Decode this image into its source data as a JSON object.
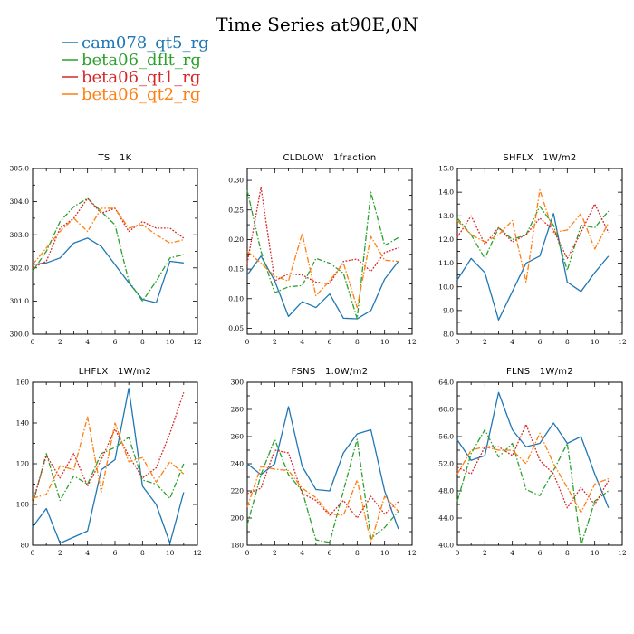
{
  "figure": {
    "title": "Time Series at90E,0N",
    "legend": [
      {
        "label": "cam078_qt5_rg",
        "color": "#1f77b4",
        "dash": "solid"
      },
      {
        "label": "beta06_dflt_rg",
        "color": "#2ca02c",
        "dash": "dashdot"
      },
      {
        "label": "beta06_qt1_rg",
        "color": "#d62728",
        "dash": "dot"
      },
      {
        "label": "beta06_qt2_rg",
        "color": "#ff7f0e",
        "dash": "dashdot"
      }
    ]
  },
  "chart_data": [
    {
      "type": "line",
      "title": "TS   1K",
      "x": [
        0,
        1,
        2,
        3,
        4,
        5,
        6,
        7,
        8,
        9,
        10,
        11
      ],
      "xlim": [
        0,
        12
      ],
      "xticks": [
        0,
        2,
        4,
        6,
        8,
        10,
        12
      ],
      "ylim": [
        300.0,
        305.0
      ],
      "yticks": [
        300.0,
        301.0,
        302.0,
        303.0,
        304.0,
        305.0
      ],
      "ytick_labels": [
        "300.0",
        "301.0",
        "302.0",
        "303.0",
        "304.0",
        "305.0"
      ],
      "series": [
        {
          "name": "cam078_qt5_rg",
          "values": [
            302.1,
            302.15,
            302.3,
            302.75,
            302.9,
            302.65,
            302.1,
            301.55,
            301.05,
            300.95,
            302.2,
            302.15
          ]
        },
        {
          "name": "beta06_dflt_rg",
          "values": [
            301.9,
            302.5,
            303.4,
            303.85,
            304.1,
            303.7,
            303.3,
            301.6,
            301.0,
            301.6,
            302.3,
            302.4
          ]
        },
        {
          "name": "beta06_qt1_rg",
          "values": [
            302.0,
            302.2,
            303.2,
            303.5,
            304.1,
            303.65,
            303.8,
            303.1,
            303.4,
            303.2,
            303.2,
            302.9
          ]
        },
        {
          "name": "beta06_qt2_rg",
          "values": [
            302.1,
            302.6,
            303.1,
            303.5,
            303.1,
            303.8,
            303.8,
            303.2,
            303.3,
            303.0,
            302.75,
            302.85
          ]
        }
      ]
    },
    {
      "type": "line",
      "title": "CLDLOW   1fraction",
      "x": [
        0,
        1,
        2,
        3,
        4,
        5,
        6,
        7,
        8,
        9,
        10,
        11
      ],
      "xlim": [
        0,
        12
      ],
      "xticks": [
        0,
        2,
        4,
        6,
        8,
        10,
        12
      ],
      "ylim": [
        0.04,
        0.32
      ],
      "yticks": [
        0.05,
        0.1,
        0.15,
        0.2,
        0.25,
        0.3
      ],
      "ytick_labels": [
        "0.05",
        "0.10",
        "0.15",
        "0.20",
        "0.25",
        "0.30"
      ],
      "series": [
        {
          "name": "cam078_qt5_rg",
          "values": [
            0.14,
            0.172,
            0.13,
            0.07,
            0.095,
            0.085,
            0.108,
            0.067,
            0.066,
            0.08,
            0.133,
            0.163
          ]
        },
        {
          "name": "beta06_dflt_rg",
          "values": [
            0.283,
            0.18,
            0.11,
            0.12,
            0.122,
            0.168,
            0.16,
            0.143,
            0.066,
            0.28,
            0.19,
            0.203
          ]
        },
        {
          "name": "beta06_qt1_rg",
          "values": [
            0.16,
            0.288,
            0.13,
            0.142,
            0.14,
            0.128,
            0.125,
            0.163,
            0.167,
            0.146,
            0.178,
            0.186
          ]
        },
        {
          "name": "beta06_qt2_rg",
          "values": [
            0.18,
            0.16,
            0.138,
            0.13,
            0.21,
            0.105,
            0.13,
            0.16,
            0.085,
            0.205,
            0.165,
            0.163
          ]
        }
      ]
    },
    {
      "type": "line",
      "title": "SHFLX   1W/m2",
      "x": [
        0,
        1,
        2,
        3,
        4,
        5,
        6,
        7,
        8,
        9,
        10,
        11
      ],
      "xlim": [
        0,
        12
      ],
      "xticks": [
        0,
        2,
        4,
        6,
        8,
        10,
        12
      ],
      "ylim": [
        8.0,
        15.0
      ],
      "yticks": [
        8.0,
        9.0,
        10.0,
        11.0,
        12.0,
        13.0,
        14.0,
        15.0
      ],
      "ytick_labels": [
        "8.0",
        "9.0",
        "10.0",
        "11.0",
        "12.0",
        "13.0",
        "14.0",
        "15.0"
      ],
      "series": [
        {
          "name": "cam078_qt5_rg",
          "values": [
            10.3,
            11.2,
            10.6,
            8.6,
            9.8,
            11.0,
            11.3,
            13.1,
            10.2,
            9.8,
            10.6,
            11.3
          ]
        },
        {
          "name": "beta06_dflt_rg",
          "values": [
            12.9,
            12.2,
            11.2,
            12.5,
            12.0,
            12.2,
            13.4,
            12.6,
            10.7,
            12.6,
            12.5,
            13.2
          ]
        },
        {
          "name": "beta06_qt1_rg",
          "values": [
            12.1,
            13.0,
            11.8,
            12.5,
            11.9,
            12.2,
            12.9,
            12.4,
            11.2,
            12.3,
            13.5,
            12.3
          ]
        },
        {
          "name": "beta06_qt2_rg",
          "values": [
            12.8,
            12.2,
            11.9,
            12.2,
            12.8,
            10.2,
            14.1,
            12.3,
            12.4,
            13.1,
            11.6,
            12.7
          ]
        }
      ]
    },
    {
      "type": "line",
      "title": "LHFLX   1W/m2",
      "x": [
        0,
        1,
        2,
        3,
        4,
        5,
        6,
        7,
        8,
        9,
        10,
        11
      ],
      "xlim": [
        0,
        12
      ],
      "xticks": [
        0,
        2,
        4,
        6,
        8,
        10,
        12
      ],
      "ylim": [
        80,
        160
      ],
      "yticks": [
        80,
        100,
        120,
        140,
        160
      ],
      "ytick_labels": [
        "80",
        "100",
        "120",
        "140",
        "160"
      ],
      "series": [
        {
          "name": "cam078_qt5_rg",
          "values": [
            89,
            98,
            81,
            84,
            87,
            117,
            122,
            157,
            109,
            100,
            81,
            106
          ]
        },
        {
          "name": "beta06_dflt_rg",
          "values": [
            100,
            125,
            102,
            114,
            110,
            125,
            128,
            133,
            112,
            110,
            103,
            120
          ]
        },
        {
          "name": "beta06_qt1_rg",
          "values": [
            101,
            124,
            113,
            125,
            109,
            122,
            137,
            124,
            113,
            118,
            135,
            155
          ]
        },
        {
          "name": "beta06_qt2_rg",
          "values": [
            103,
            105,
            119,
            117,
            143,
            106,
            140,
            121,
            123,
            111,
            121,
            115
          ]
        }
      ]
    },
    {
      "type": "line",
      "title": "FSNS   1.0W/m2",
      "x": [
        0,
        1,
        2,
        3,
        4,
        5,
        6,
        7,
        8,
        9,
        10,
        11
      ],
      "xlim": [
        0,
        12
      ],
      "xticks": [
        0,
        2,
        4,
        6,
        8,
        10,
        12
      ],
      "ylim": [
        180,
        300
      ],
      "yticks": [
        180,
        200,
        220,
        240,
        260,
        280,
        300
      ],
      "ytick_labels": [
        "180",
        "200",
        "220",
        "240",
        "260",
        "280",
        "300"
      ],
      "series": [
        {
          "name": "cam078_qt5_rg",
          "values": [
            240,
            232,
            240,
            282,
            238,
            221,
            220,
            248,
            262,
            265,
            220,
            192
          ]
        },
        {
          "name": "beta06_dflt_rg",
          "values": [
            195,
            232,
            258,
            232,
            220,
            184,
            182,
            220,
            258,
            185,
            193,
            205
          ]
        },
        {
          "name": "beta06_qt1_rg",
          "values": [
            218,
            222,
            250,
            248,
            218,
            213,
            202,
            213,
            200,
            216,
            203,
            212
          ]
        },
        {
          "name": "beta06_qt2_rg",
          "values": [
            208,
            238,
            236,
            235,
            222,
            215,
            203,
            202,
            228,
            182,
            216,
            205
          ]
        }
      ]
    },
    {
      "type": "line",
      "title": "FLNS   1W/m2",
      "x": [
        0,
        1,
        2,
        3,
        4,
        5,
        6,
        7,
        8,
        9,
        10,
        11
      ],
      "xlim": [
        0,
        12
      ],
      "xticks": [
        0,
        2,
        4,
        6,
        8,
        10,
        12
      ],
      "ylim": [
        40.0,
        64.0
      ],
      "yticks": [
        40.0,
        44.0,
        48.0,
        52.0,
        56.0,
        60.0,
        64.0
      ],
      "ytick_labels": [
        "40.0",
        "44.0",
        "48.0",
        "52.0",
        "56.0",
        "60.0",
        "64.0"
      ],
      "series": [
        {
          "name": "cam078_qt5_rg",
          "values": [
            55.5,
            52.5,
            53.2,
            62.5,
            57.0,
            54.5,
            55.0,
            58.0,
            55.0,
            56.0,
            50.5,
            45.5
          ]
        },
        {
          "name": "beta06_dflt_rg",
          "values": [
            46.5,
            53.5,
            57.0,
            53.0,
            55.0,
            48.2,
            47.3,
            51.0,
            55.0,
            40.0,
            46.5,
            48.0
          ]
        },
        {
          "name": "beta06_qt1_rg",
          "values": [
            51.5,
            50.5,
            54.5,
            54.5,
            53.2,
            57.8,
            52.5,
            50.5,
            45.5,
            48.5,
            46.0,
            49.5
          ]
        },
        {
          "name": "beta06_qt2_rg",
          "values": [
            50.5,
            54.0,
            54.5,
            54.0,
            54.0,
            52.0,
            56.5,
            52.0,
            48.5,
            44.8,
            49.0,
            49.8
          ]
        }
      ]
    }
  ]
}
